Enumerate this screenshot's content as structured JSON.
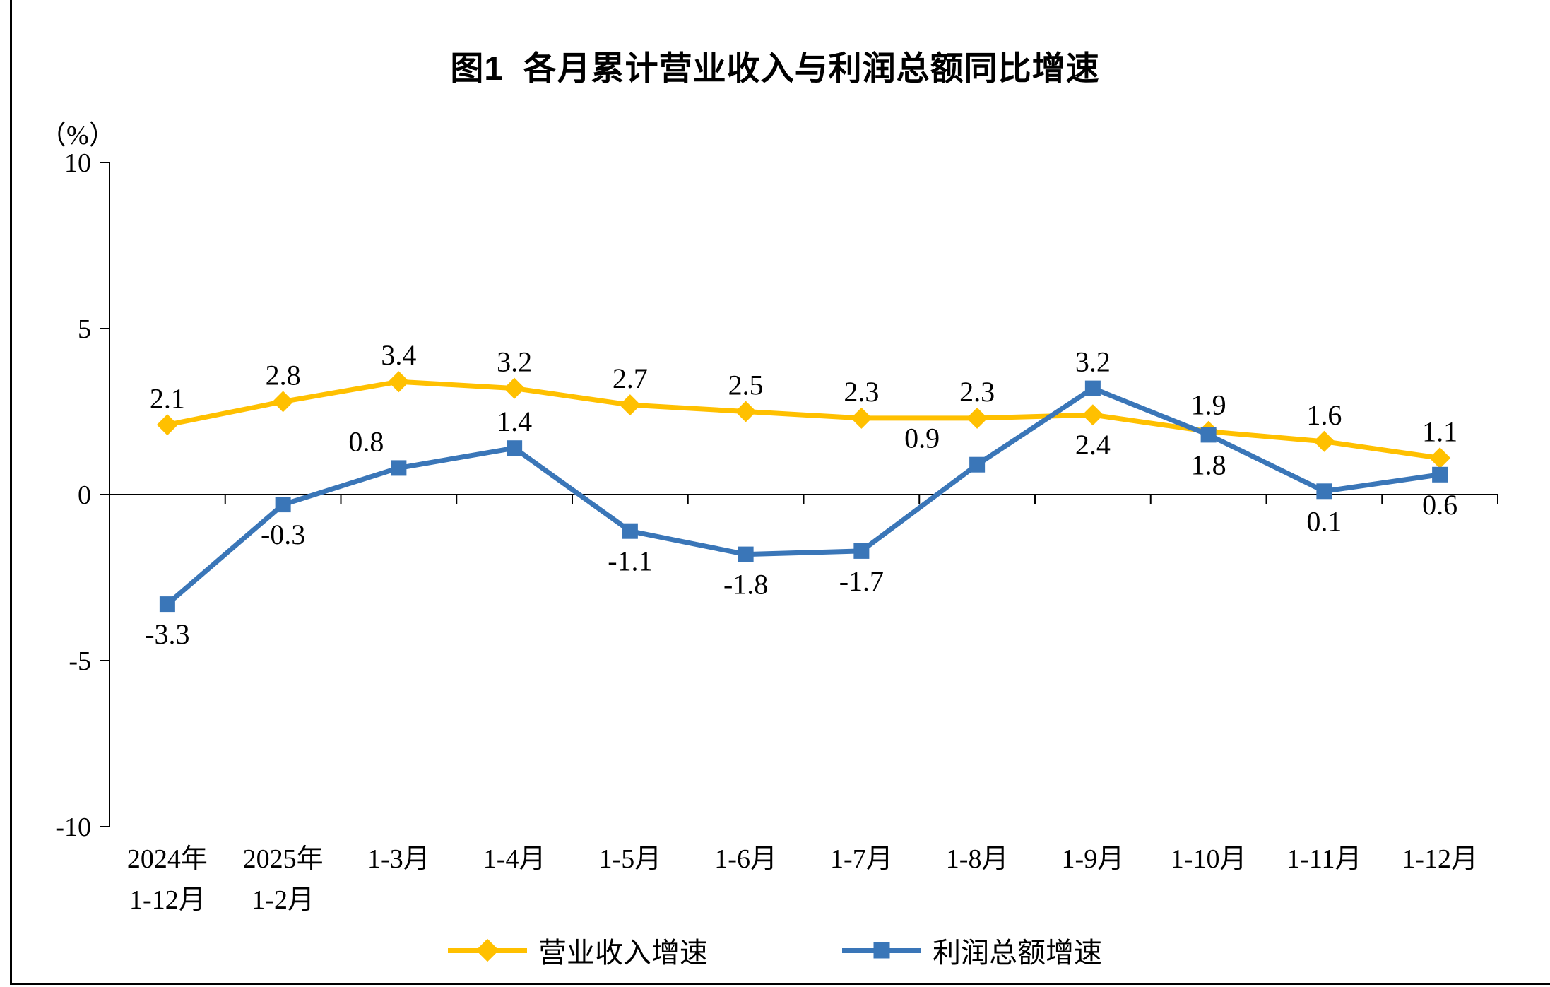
{
  "chart_data": {
    "type": "line",
    "title": "图1  各月累计营业收入与利润总额同比增速",
    "unit_label": "（%）",
    "ylim": [
      -10,
      10
    ],
    "yticks": [
      10,
      5,
      0,
      -5,
      -10
    ],
    "grid": "off",
    "legend_position": "bottom",
    "categories": [
      [
        "2024年",
        "1-12月"
      ],
      [
        "2025年",
        "1-2月"
      ],
      [
        "1-3月"
      ],
      [
        "1-4月"
      ],
      [
        "1-5月"
      ],
      [
        "1-6月"
      ],
      [
        "1-7月"
      ],
      [
        "1-8月"
      ],
      [
        "1-9月"
      ],
      [
        "1-10月"
      ],
      [
        "1-11月"
      ],
      [
        "1-12月"
      ]
    ],
    "series": [
      {
        "name": "营业收入增速",
        "color": "#FFC000",
        "marker": "diamond",
        "values": [
          2.1,
          2.8,
          3.4,
          3.2,
          2.7,
          2.5,
          2.3,
          2.3,
          2.4,
          1.9,
          1.6,
          1.1
        ],
        "label_side": [
          "above",
          "above",
          "above",
          "above",
          "above",
          "above",
          "above",
          "above",
          "below",
          "above",
          "above",
          "above"
        ],
        "label_dx": [
          0,
          0,
          0,
          0,
          0,
          0,
          0,
          0,
          0,
          0,
          0,
          0
        ]
      },
      {
        "name": "利润总额增速",
        "color": "#3A76B8",
        "marker": "square",
        "values": [
          -3.3,
          -0.3,
          0.8,
          1.4,
          -1.1,
          -1.8,
          -1.7,
          0.9,
          3.2,
          1.8,
          0.1,
          0.6
        ],
        "label_side": [
          "below",
          "below",
          "above",
          "above",
          "below",
          "below",
          "below",
          "above",
          "above",
          "below",
          "below",
          "below"
        ],
        "label_dx": [
          0,
          0,
          -46,
          0,
          0,
          0,
          0,
          -78,
          0,
          0,
          0,
          0
        ]
      }
    ]
  }
}
